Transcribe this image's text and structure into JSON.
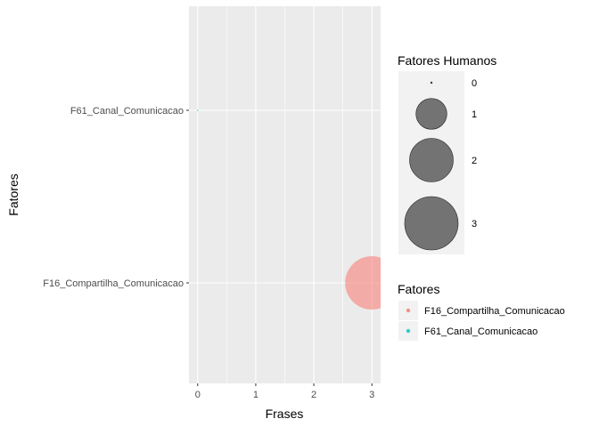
{
  "chart_data": {
    "type": "scatter",
    "xlabel": "Frases",
    "ylabel": "Fatores",
    "xlim": [
      -0.15,
      3.15
    ],
    "x_ticks": [
      "0",
      "1",
      "2",
      "3"
    ],
    "categories": [
      "F16_Compartilha_Comunicacao",
      "F61_Canal_Comunicacao"
    ],
    "points": [
      {
        "x": 3,
        "y": "F16_Compartilha_Comunicacao",
        "size": 3,
        "color": "#F8766D"
      },
      {
        "x": 0,
        "y": "F61_Canal_Comunicacao",
        "size": 0,
        "color": "#00BFC4"
      }
    ],
    "size_legend": {
      "title": "Fatores Humanos",
      "levels": [
        "0",
        "1",
        "2",
        "3"
      ]
    },
    "color_legend": {
      "title": "Fatores",
      "entries": [
        {
          "label": "F16_Compartilha_Comunicacao",
          "color": "#F8766D"
        },
        {
          "label": "F61_Canal_Comunicacao",
          "color": "#00BFC4"
        }
      ]
    },
    "grid": true,
    "legend_position": "right",
    "colors": {
      "panel": "#EBEBEB",
      "grid": "#FFFFFF",
      "size_key": "#737373"
    }
  }
}
